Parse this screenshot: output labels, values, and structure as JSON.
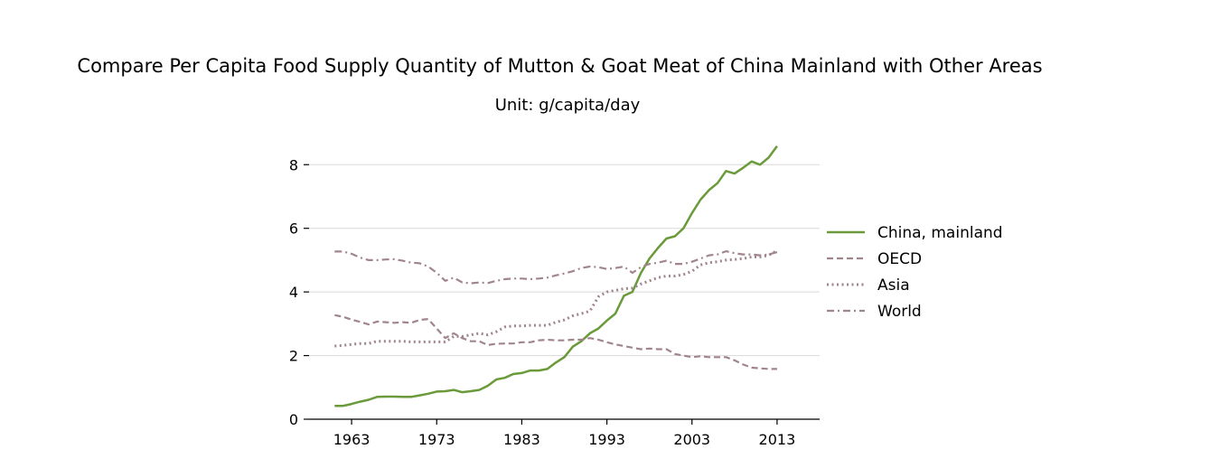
{
  "chart_data": {
    "type": "line",
    "title": "Compare Per Capita Food Supply Quantity of Mutton & Goat Meat of China Mainland with Other Areas",
    "subtitle": "Unit: g/capita/day",
    "xlabel": "",
    "ylabel": "",
    "xlim": [
      1958,
      2018
    ],
    "ylim": [
      0,
      9.2
    ],
    "xticks": [
      1963,
      1973,
      1983,
      1993,
      2003,
      2013
    ],
    "yticks": [
      0,
      2,
      4,
      6,
      8
    ],
    "grid": "horizontal",
    "legend_position": "right",
    "x": [
      1961,
      1962,
      1963,
      1964,
      1965,
      1966,
      1967,
      1968,
      1969,
      1970,
      1971,
      1972,
      1973,
      1974,
      1975,
      1976,
      1977,
      1978,
      1979,
      1980,
      1981,
      1982,
      1983,
      1984,
      1985,
      1986,
      1987,
      1988,
      1989,
      1990,
      1991,
      1992,
      1993,
      1994,
      1995,
      1996,
      1997,
      1998,
      1999,
      2000,
      2001,
      2002,
      2003,
      2004,
      2005,
      2006,
      2007,
      2008,
      2009,
      2010,
      2011,
      2012,
      2013
    ],
    "series": [
      {
        "name": "China, mainland",
        "color": "#6a9a3a",
        "dash": "solid",
        "values": [
          0.42,
          0.42,
          0.48,
          0.55,
          0.61,
          0.7,
          0.71,
          0.71,
          0.7,
          0.7,
          0.75,
          0.8,
          0.87,
          0.88,
          0.92,
          0.85,
          0.88,
          0.92,
          1.05,
          1.25,
          1.3,
          1.42,
          1.45,
          1.53,
          1.53,
          1.58,
          1.78,
          1.95,
          2.28,
          2.45,
          2.7,
          2.85,
          3.1,
          3.32,
          3.88,
          4.0,
          4.6,
          5.05,
          5.38,
          5.68,
          5.75,
          6.0,
          6.48,
          6.9,
          7.2,
          7.42,
          7.8,
          7.72,
          7.9,
          8.1,
          8.0,
          8.22,
          8.58
        ]
      },
      {
        "name": "OECD",
        "color": "#a0858c",
        "dash": "dashed",
        "values": [
          3.27,
          3.22,
          3.13,
          3.06,
          2.98,
          3.07,
          3.05,
          3.03,
          3.05,
          3.03,
          3.12,
          3.15,
          2.85,
          2.55,
          2.7,
          2.55,
          2.45,
          2.45,
          2.33,
          2.37,
          2.38,
          2.38,
          2.42,
          2.42,
          2.48,
          2.5,
          2.48,
          2.48,
          2.5,
          2.5,
          2.55,
          2.5,
          2.42,
          2.35,
          2.3,
          2.25,
          2.2,
          2.22,
          2.2,
          2.2,
          2.05,
          2.0,
          1.95,
          1.98,
          1.95,
          1.95,
          1.95,
          1.85,
          1.72,
          1.62,
          1.6,
          1.58,
          1.58
        ]
      },
      {
        "name": "Asia",
        "color": "#a0858c",
        "dash": "dotted",
        "values": [
          2.3,
          2.32,
          2.35,
          2.38,
          2.38,
          2.45,
          2.45,
          2.45,
          2.45,
          2.43,
          2.43,
          2.43,
          2.43,
          2.43,
          2.6,
          2.6,
          2.65,
          2.7,
          2.65,
          2.75,
          2.9,
          2.93,
          2.93,
          2.95,
          2.95,
          2.95,
          3.05,
          3.12,
          3.25,
          3.32,
          3.4,
          3.85,
          4.0,
          4.05,
          4.1,
          4.12,
          4.25,
          4.35,
          4.45,
          4.5,
          4.5,
          4.55,
          4.65,
          4.85,
          4.92,
          4.95,
          5.0,
          5.02,
          5.05,
          5.1,
          5.1,
          5.15,
          5.3
        ]
      },
      {
        "name": "World",
        "color": "#a0858c",
        "dash": "dashdot",
        "values": [
          5.27,
          5.27,
          5.2,
          5.08,
          5.0,
          5.0,
          5.02,
          5.03,
          4.98,
          4.92,
          4.9,
          4.8,
          4.6,
          4.35,
          4.45,
          4.3,
          4.27,
          4.3,
          4.28,
          4.35,
          4.4,
          4.42,
          4.42,
          4.4,
          4.42,
          4.45,
          4.52,
          4.58,
          4.65,
          4.75,
          4.8,
          4.78,
          4.72,
          4.75,
          4.8,
          4.6,
          4.78,
          4.88,
          4.92,
          4.98,
          4.88,
          4.88,
          4.95,
          5.05,
          5.15,
          5.18,
          5.28,
          5.22,
          5.18,
          5.18,
          5.15,
          5.18,
          5.25
        ]
      }
    ]
  }
}
